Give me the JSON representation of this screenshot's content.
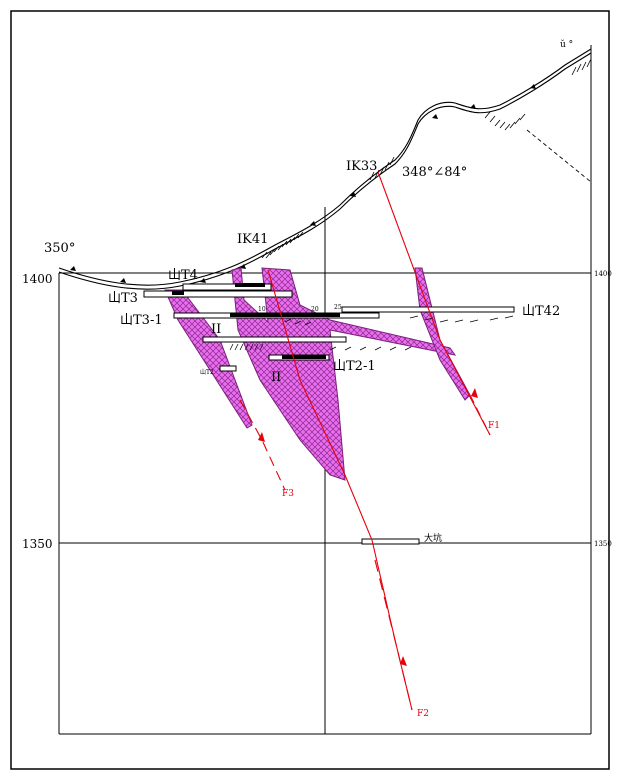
{
  "section": {
    "elevation_labels_left": [
      "1400",
      "1350"
    ],
    "elevation_labels_right": [
      "1400",
      "1350"
    ],
    "azimuth_left": "350°",
    "azimuth_right": "ŭ °",
    "boreholes": [
      {
        "name": "IK33",
        "attitude": "348°∠84°"
      },
      {
        "name": "IK41"
      }
    ],
    "adits": [
      "山T4",
      "山T3",
      "山T3-1",
      "山T42",
      "山T2-1",
      "山T2",
      "大坑"
    ],
    "ore_body_labels": [
      "II",
      "II"
    ],
    "faults": [
      "F1",
      "F2",
      "F3"
    ],
    "tick_numbers": [
      "10",
      "20",
      "25"
    ],
    "colors": {
      "fault_line": "#e8000b",
      "ore_fill": "#e040e8",
      "ore_hatch": "#7a1f7a",
      "frame": "#000000"
    }
  }
}
